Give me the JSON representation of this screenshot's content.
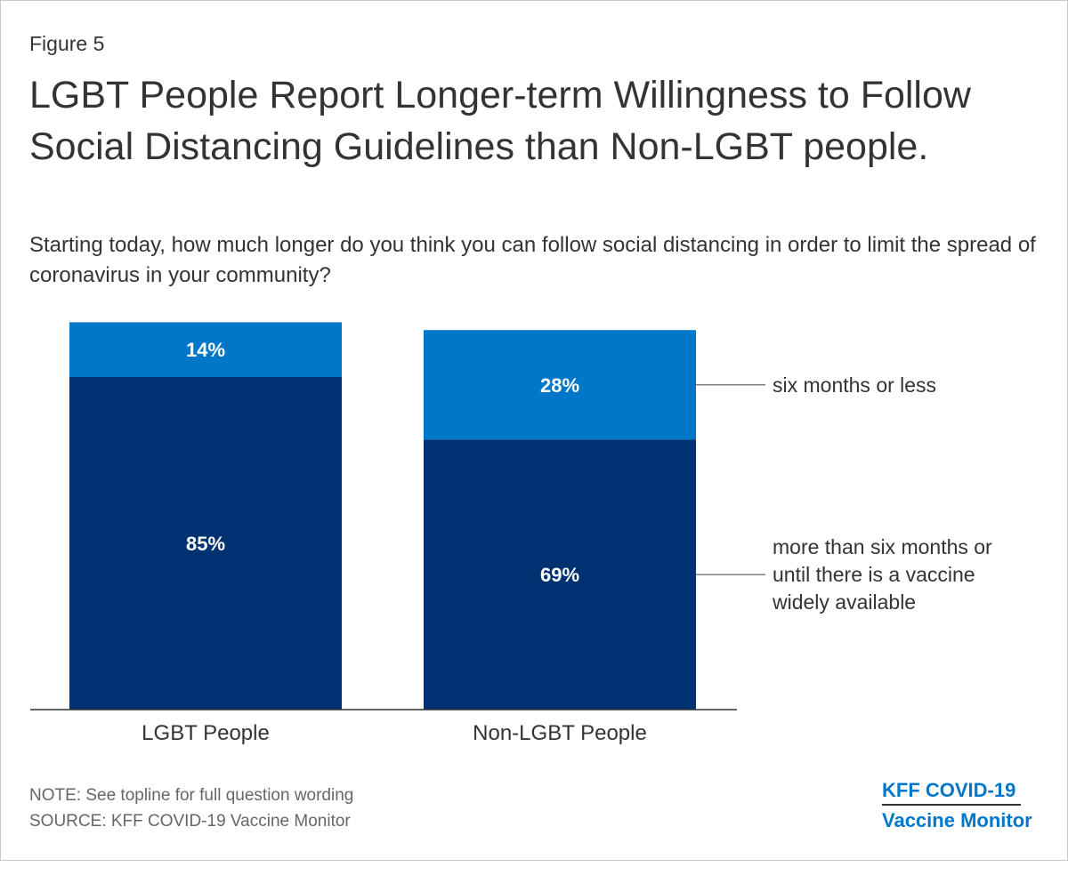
{
  "figure_label": "Figure 5",
  "title": "LGBT People Report Longer-term Willingness to Follow Social Distancing Guidelines than Non-LGBT people.",
  "subtitle": "Starting today, how much longer do you think you can follow social distancing in order to limit the spread of coronavirus in your community?",
  "note": "NOTE: See topline for full question wording",
  "source": "SOURCE: KFF COVID-19 Vaccine Monitor",
  "logo": {
    "line1": "KFF COVID-19",
    "line2": "Vaccine Monitor"
  },
  "colors": {
    "dark": "#003271",
    "light": "#0077c8",
    "text": "#333333",
    "label": "#ffffff"
  },
  "chart_data": {
    "type": "bar",
    "stacked": true,
    "categories": [
      "LGBT People",
      "Non-LGBT People"
    ],
    "series": [
      {
        "name": "more than six months or until there is a vaccine widely available",
        "legend_lines": [
          "more than six months or",
          "until there is a vaccine",
          "widely available"
        ],
        "values": [
          85,
          69
        ],
        "labels": [
          "85%",
          "69%"
        ],
        "color": "#003271"
      },
      {
        "name": "six months or less",
        "legend_lines": [
          "six months or less"
        ],
        "values": [
          14,
          28
        ],
        "labels": [
          "14%",
          "28%"
        ],
        "color": "#0077c8"
      }
    ],
    "ylim": [
      0,
      100
    ],
    "grid": false,
    "legend": "right"
  }
}
